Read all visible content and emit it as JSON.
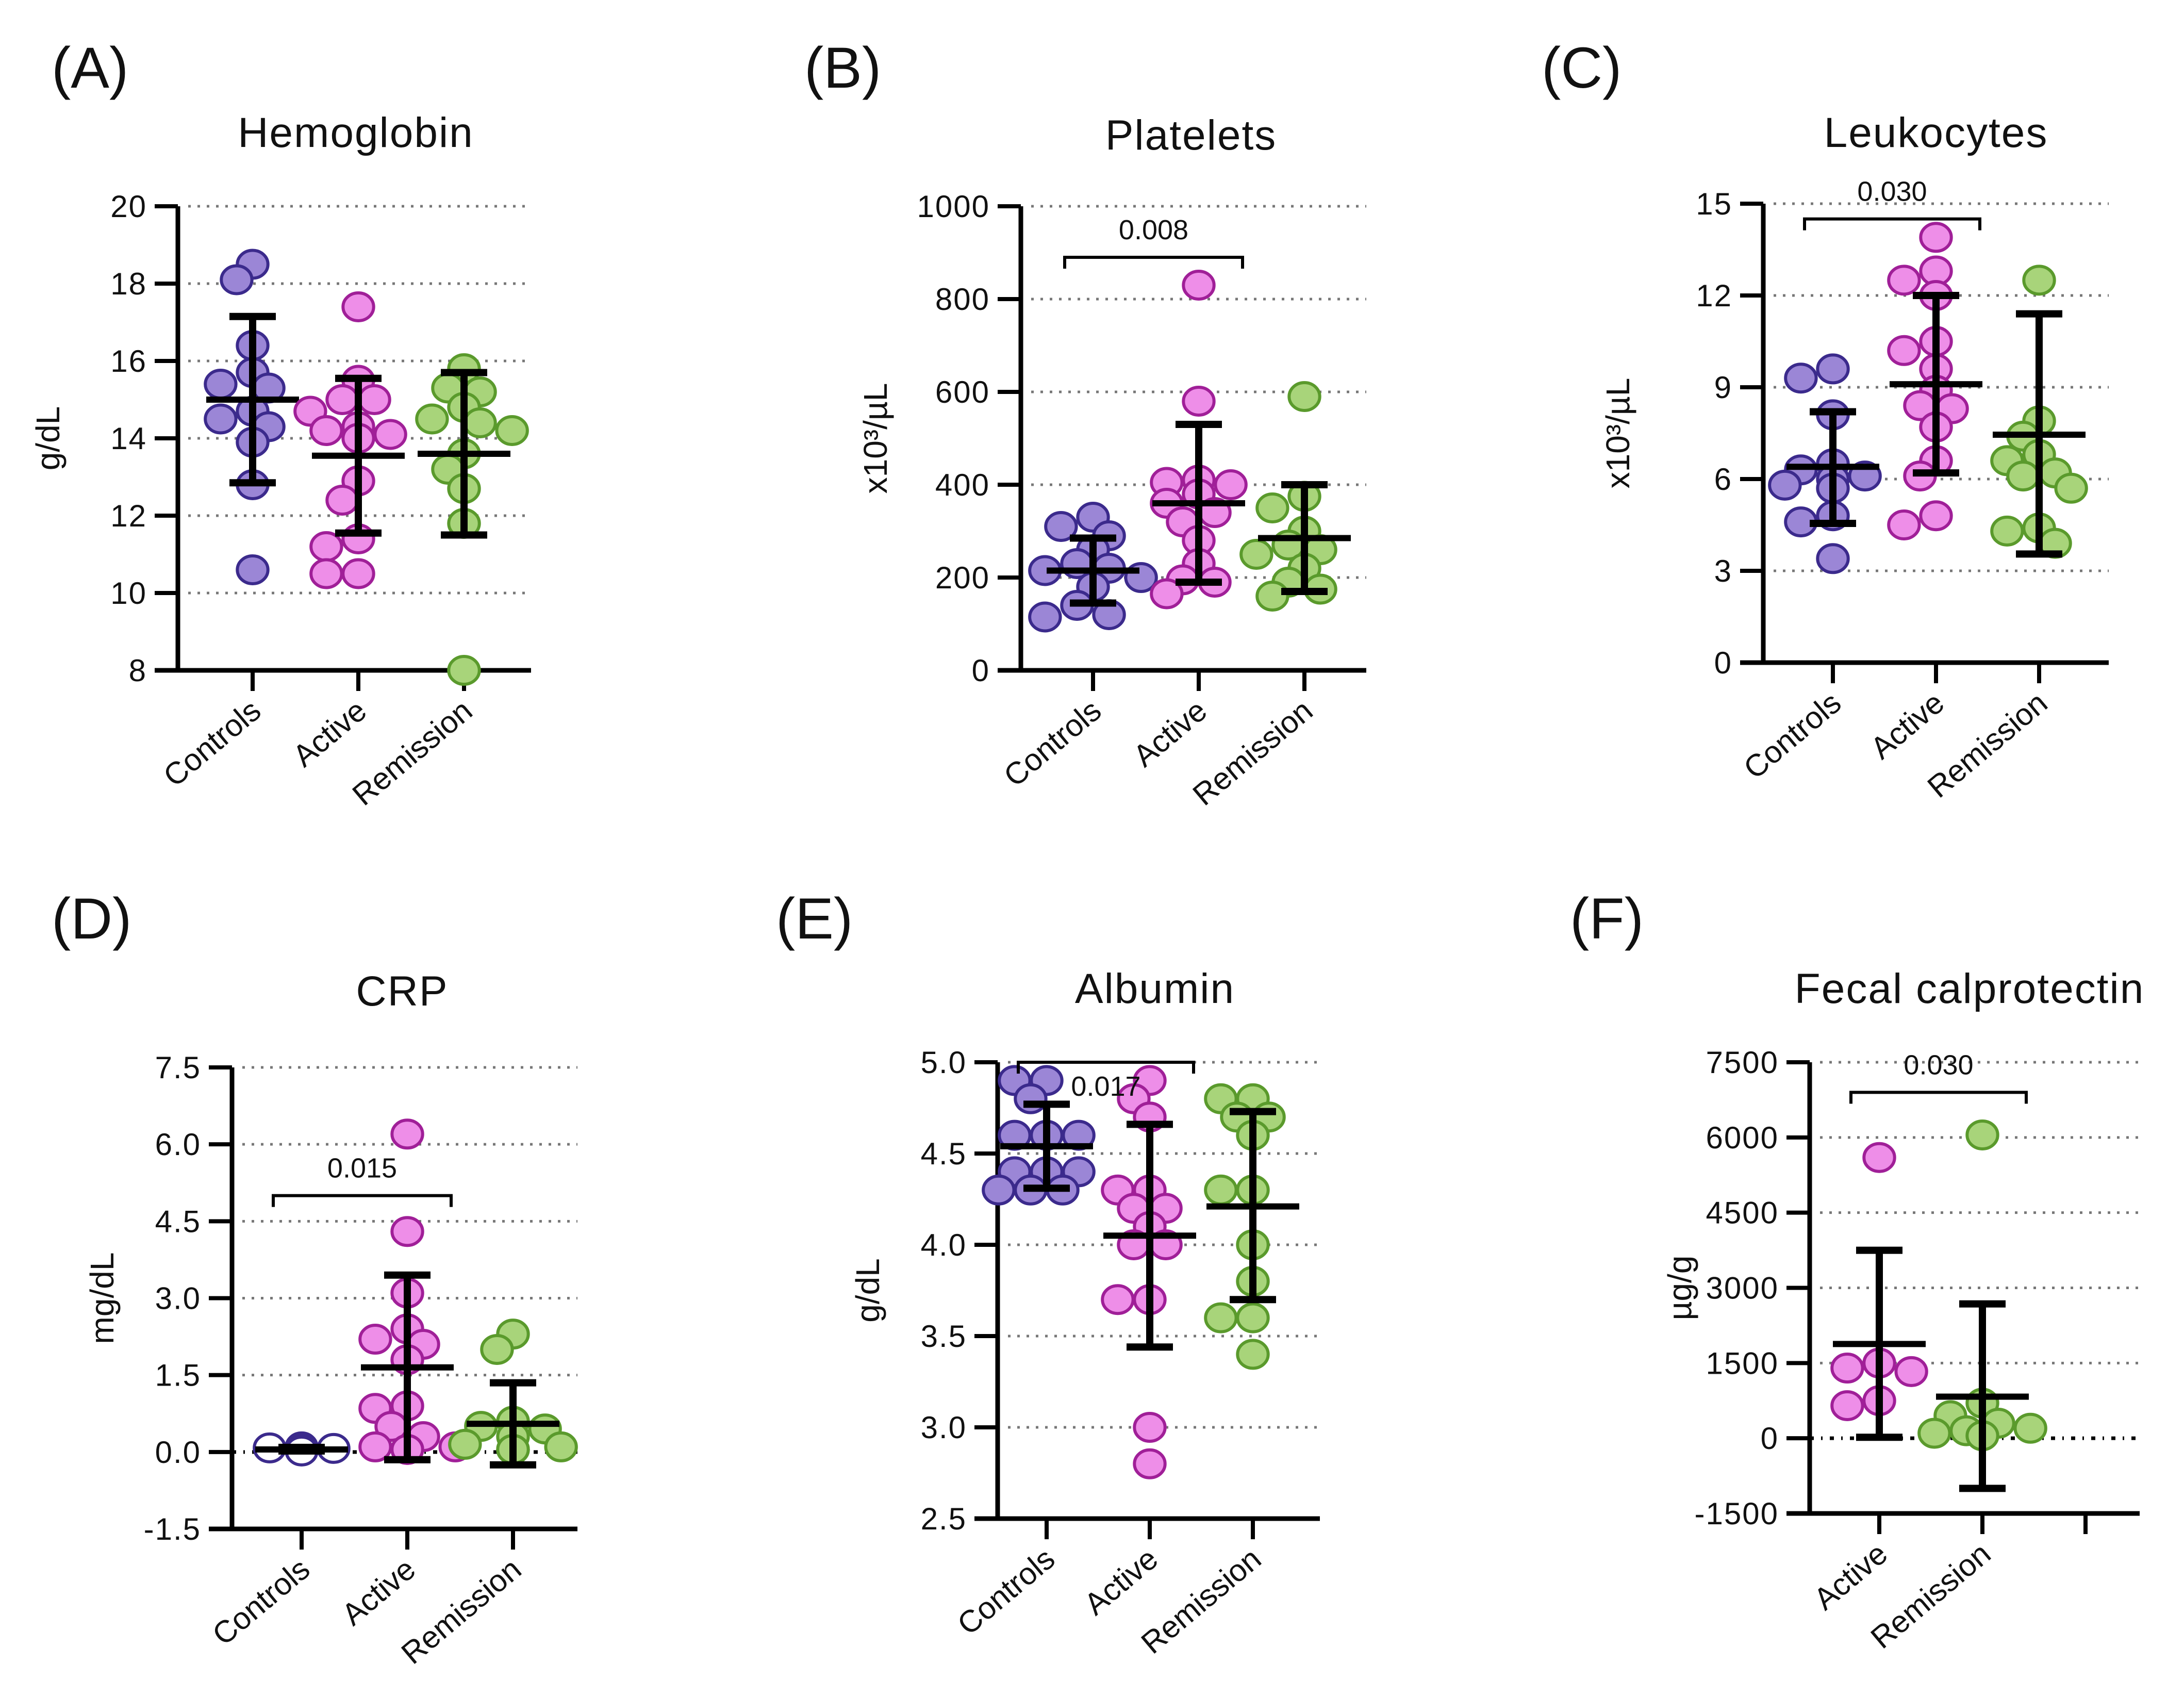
{
  "colors": {
    "Controls": {
      "fill": "#9b86d6",
      "stroke": "#3b2a8c"
    },
    "Active": {
      "fill": "#ee8ee8",
      "stroke": "#a01f98"
    },
    "Remission": {
      "fill": "#a8d47a",
      "stroke": "#5a9a2c"
    },
    "Controls_hollow": {
      "fill": "#ffffff",
      "stroke": "#3b2a8c"
    }
  },
  "chart_data": [
    {
      "id": "A",
      "panel_label": "(A)",
      "type": "scatter",
      "title": "Hemoglobin",
      "ylabel": "g/dL",
      "ylim": [
        8,
        20
      ],
      "yticks": [
        8,
        10,
        12,
        14,
        16,
        18,
        20
      ],
      "ytick_labels": [
        "8",
        "10",
        "12",
        "14",
        "16",
        "18",
        "20"
      ],
      "grid": true,
      "categories": [
        "Controls",
        "Active",
        "Remission"
      ],
      "series": [
        {
          "name": "Controls",
          "values": [
            18.5,
            18.1,
            16.4,
            15.7,
            15.4,
            15.3,
            14.7,
            14.5,
            14.3,
            13.9,
            12.8,
            10.6
          ],
          "mean": 15.0,
          "sd_low": 12.85,
          "sd_high": 17.15
        },
        {
          "name": "Active",
          "values": [
            17.4,
            15.5,
            15.0,
            15.0,
            14.7,
            14.3,
            14.2,
            14.1,
            14.0,
            12.9,
            12.4,
            11.4,
            11.2,
            10.5,
            10.5
          ],
          "mean": 13.55,
          "sd_low": 11.55,
          "sd_high": 15.55
        },
        {
          "name": "Remission",
          "values": [
            15.8,
            15.3,
            15.2,
            14.8,
            14.5,
            14.4,
            14.2,
            13.6,
            13.2,
            12.7,
            11.8,
            8.0
          ],
          "mean": 13.6,
          "sd_low": 11.5,
          "sd_high": 15.7
        }
      ],
      "comparisons": []
    },
    {
      "id": "B",
      "panel_label": "(B)",
      "type": "scatter",
      "title": "Platelets",
      "ylabel": "x10³/µL",
      "ylim": [
        0,
        1000
      ],
      "yticks": [
        0,
        200,
        400,
        600,
        800,
        1000
      ],
      "ytick_labels": [
        "0",
        "200",
        "400",
        "600",
        "800",
        "1000"
      ],
      "grid": true,
      "categories": [
        "Controls",
        "Active",
        "Remission"
      ],
      "series": [
        {
          "name": "Controls",
          "values": [
            330,
            310,
            290,
            260,
            230,
            220,
            215,
            200,
            180,
            140,
            120,
            115
          ],
          "mean": 215,
          "sd_low": 145,
          "sd_high": 285
        },
        {
          "name": "Active",
          "values": [
            830,
            580,
            410,
            405,
            400,
            380,
            360,
            340,
            320,
            280,
            230,
            195,
            190,
            165
          ],
          "mean": 360,
          "sd_low": 190,
          "sd_high": 530
        },
        {
          "name": "Remission",
          "values": [
            590,
            375,
            350,
            300,
            270,
            260,
            250,
            220,
            190,
            175,
            160
          ],
          "mean": 285,
          "sd_low": 170,
          "sd_high": 400
        }
      ],
      "comparisons": [
        {
          "from": "Controls",
          "to": "Active",
          "p": "0.008",
          "y": 890
        }
      ]
    },
    {
      "id": "C",
      "panel_label": "(C)",
      "type": "scatter",
      "title": "Leukocytes",
      "ylabel": "x10³/µL",
      "ylim": [
        0,
        15
      ],
      "yticks": [
        0,
        3,
        6,
        9,
        12,
        15
      ],
      "ytick_labels": [
        "0",
        "3",
        "6",
        "9",
        "12",
        "15"
      ],
      "grid": true,
      "categories": [
        "Controls",
        "Active",
        "Remission"
      ],
      "series": [
        {
          "name": "Controls",
          "values": [
            9.6,
            9.3,
            8.1,
            6.5,
            6.3,
            6.1,
            6.0,
            5.8,
            5.7,
            4.8,
            4.6,
            3.4
          ],
          "mean": 6.4,
          "sd_low": 4.55,
          "sd_high": 8.2
        },
        {
          "name": "Active",
          "values": [
            13.9,
            12.8,
            12.5,
            12.0,
            10.5,
            10.2,
            9.6,
            8.9,
            8.4,
            8.3,
            7.7,
            6.6,
            6.1,
            4.8,
            4.5
          ],
          "mean": 9.1,
          "sd_low": 6.2,
          "sd_high": 12.0
        },
        {
          "name": "Remission",
          "values": [
            12.5,
            7.9,
            7.4,
            6.8,
            6.6,
            6.2,
            6.1,
            5.7,
            4.4,
            4.3,
            3.9
          ],
          "mean": 7.45,
          "sd_low": 3.55,
          "sd_high": 11.4
        }
      ],
      "comparisons": [
        {
          "from": "Controls",
          "to": "Active",
          "p": "0.030",
          "y": 14.5
        }
      ]
    },
    {
      "id": "D",
      "panel_label": "(D)",
      "type": "scatter",
      "title": "CRP",
      "ylabel": "mg/dL",
      "ylim": [
        -1.5,
        7.5
      ],
      "yticks": [
        -1.5,
        0,
        1.5,
        3,
        4.5,
        6,
        7.5
      ],
      "ytick_labels": [
        "-1.5",
        "0.0",
        "1.5",
        "3.0",
        "4.5",
        "6.0",
        "7.5"
      ],
      "grid": true,
      "zero_line": true,
      "categories": [
        "Controls",
        "Active",
        "Remission"
      ],
      "series": [
        {
          "name": "Controls",
          "hollow": true,
          "values": [
            0.1,
            0.08,
            0.07,
            0.06,
            0.05,
            0.05,
            0.05,
            0.04,
            0.03,
            0.02
          ],
          "mean": 0.05,
          "sd_low": 0.02,
          "sd_high": 0.09
        },
        {
          "name": "Active",
          "values": [
            6.2,
            4.3,
            3.1,
            2.4,
            2.2,
            2.1,
            1.8,
            0.9,
            0.85,
            0.5,
            0.3,
            0.1,
            0.1,
            0.05,
            0.05
          ],
          "mean": 1.65,
          "sd_low": -0.15,
          "sd_high": 3.45
        },
        {
          "name": "Remission",
          "values": [
            2.3,
            2.0,
            0.6,
            0.5,
            0.45,
            0.3,
            0.15,
            0.1,
            0.05,
            0.05
          ],
          "mean": 0.55,
          "sd_low": -0.25,
          "sd_high": 1.35
        }
      ],
      "comparisons": [
        {
          "from": "Controls",
          "to": "Active",
          "p": "0.015",
          "y": 5.0
        }
      ]
    },
    {
      "id": "E",
      "panel_label": "(E)",
      "type": "scatter",
      "title": "Albumin",
      "ylabel": "g/dL",
      "ylim": [
        2.5,
        5.0
      ],
      "yticks": [
        2.5,
        3.0,
        3.5,
        4.0,
        4.5,
        5.0
      ],
      "ytick_labels": [
        "2.5",
        "3.0",
        "3.5",
        "4.0",
        "4.5",
        "5.0"
      ],
      "grid": true,
      "categories": [
        "Controls",
        "Active",
        "Remission"
      ],
      "series": [
        {
          "name": "Controls",
          "values": [
            4.9,
            4.9,
            4.8,
            4.6,
            4.6,
            4.6,
            4.4,
            4.4,
            4.4,
            4.3,
            4.3,
            4.3
          ],
          "mean": 4.54,
          "sd_low": 4.31,
          "sd_high": 4.77
        },
        {
          "name": "Active",
          "values": [
            4.9,
            4.8,
            4.7,
            4.3,
            4.3,
            4.2,
            4.2,
            4.1,
            4.0,
            4.0,
            3.7,
            3.7,
            3.0,
            2.8
          ],
          "mean": 4.05,
          "sd_low": 3.44,
          "sd_high": 4.66
        },
        {
          "name": "Remission",
          "values": [
            4.8,
            4.8,
            4.7,
            4.7,
            4.6,
            4.3,
            4.3,
            4.0,
            3.8,
            3.6,
            3.6,
            3.4
          ],
          "mean": 4.21,
          "sd_low": 3.7,
          "sd_high": 4.73
        }
      ],
      "comparisons": [
        {
          "from": "Controls",
          "to": "Active",
          "p": "0.017",
          "y": 5.0,
          "label_inside": true
        }
      ]
    },
    {
      "id": "F",
      "panel_label": "(F)",
      "type": "scatter",
      "title": "Fecal calprotectin",
      "ylabel": "µg/g",
      "ylim": [
        -1500,
        7500
      ],
      "yticks": [
        -1500,
        0,
        1500,
        3000,
        4500,
        6000,
        7500
      ],
      "ytick_labels": [
        "-1500",
        "0",
        "1500",
        "3000",
        "4500",
        "6000",
        "7500"
      ],
      "grid": true,
      "zero_line": true,
      "categories": [
        "Active",
        "Remission",
        ""
      ],
      "series": [
        {
          "name": "Active",
          "values": [
            5600,
            1500,
            1400,
            1330,
            750,
            650
          ],
          "mean": 1880,
          "sd_low": 20,
          "sd_high": 3750
        },
        {
          "name": "Remission",
          "values": [
            6050,
            700,
            450,
            300,
            200,
            150,
            100,
            50
          ],
          "mean": 830,
          "sd_low": -1000,
          "sd_high": 2680
        }
      ],
      "comparisons": [
        {
          "from": "Active",
          "to": "Remission",
          "p": "0.030",
          "y": 6900
        }
      ]
    }
  ]
}
